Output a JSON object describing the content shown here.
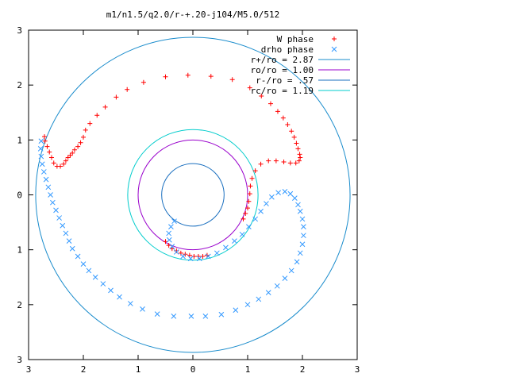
{
  "chart_data": {
    "type": "scatter",
    "title": "m1/n1.5/q2.0/r-+.20-j104/M5.0/512",
    "xlabel": "",
    "ylabel": "",
    "xlim": [
      -3,
      3
    ],
    "ylim": [
      -3,
      3
    ],
    "x_tick_labels": [
      "3",
      "2",
      "1",
      "0",
      "1",
      "2",
      "3"
    ],
    "y_tick_labels": [
      "3",
      "2",
      "1",
      "0",
      "1",
      "2",
      "3"
    ],
    "grid": false,
    "legend_position": "top-right",
    "series": [
      {
        "name": "W phase",
        "kind": "points",
        "marker": "plus",
        "color": "#ff0000",
        "points": [
          [
            -0.09,
            2.18
          ],
          [
            -0.5,
            2.15
          ],
          [
            -0.9,
            2.05
          ],
          [
            -1.2,
            1.92
          ],
          [
            -1.4,
            1.78
          ],
          [
            -1.6,
            1.6
          ],
          [
            -1.75,
            1.45
          ],
          [
            -1.88,
            1.3
          ],
          [
            -1.96,
            1.18
          ],
          [
            -2.0,
            1.05
          ],
          [
            -2.05,
            0.95
          ],
          [
            -2.1,
            0.88
          ],
          [
            -2.16,
            0.82
          ],
          [
            -2.2,
            0.76
          ],
          [
            -2.24,
            0.72
          ],
          [
            -2.28,
            0.68
          ],
          [
            -2.32,
            0.62
          ],
          [
            -2.36,
            0.56
          ],
          [
            -2.42,
            0.52
          ],
          [
            -2.48,
            0.52
          ],
          [
            -2.54,
            0.58
          ],
          [
            -2.58,
            0.68
          ],
          [
            -2.62,
            0.78
          ],
          [
            -2.66,
            0.88
          ],
          [
            -2.7,
            0.98
          ],
          [
            -2.71,
            1.06
          ],
          [
            0.33,
            2.16
          ],
          [
            0.72,
            2.1
          ],
          [
            1.04,
            1.95
          ],
          [
            1.25,
            1.8
          ],
          [
            1.42,
            1.66
          ],
          [
            1.55,
            1.52
          ],
          [
            1.65,
            1.4
          ],
          [
            1.73,
            1.28
          ],
          [
            1.8,
            1.16
          ],
          [
            1.85,
            1.05
          ],
          [
            1.89,
            0.94
          ],
          [
            1.92,
            0.84
          ],
          [
            1.95,
            0.74
          ],
          [
            1.96,
            0.68
          ],
          [
            1.94,
            0.62
          ],
          [
            1.88,
            0.58
          ],
          [
            1.78,
            0.58
          ],
          [
            1.66,
            0.6
          ],
          [
            1.52,
            0.62
          ],
          [
            1.38,
            0.62
          ],
          [
            1.24,
            0.56
          ],
          [
            1.14,
            0.44
          ],
          [
            1.08,
            0.3
          ],
          [
            1.05,
            0.16
          ],
          [
            1.04,
            0.02
          ],
          [
            1.02,
            -0.12
          ],
          [
            1.0,
            -0.24
          ],
          [
            0.96,
            -0.34
          ],
          [
            0.92,
            -0.44
          ],
          [
            -0.5,
            -0.85
          ],
          [
            -0.44,
            -0.92
          ],
          [
            -0.38,
            -0.98
          ],
          [
            -0.3,
            -1.02
          ],
          [
            -0.22,
            -1.06
          ],
          [
            -0.14,
            -1.08
          ],
          [
            -0.06,
            -1.1
          ],
          [
            0.02,
            -1.12
          ],
          [
            0.1,
            -1.12
          ],
          [
            0.18,
            -1.12
          ],
          [
            0.26,
            -1.1
          ]
        ]
      },
      {
        "name": "drho phase",
        "kind": "points",
        "marker": "cross",
        "color": "#3399ff",
        "points": [
          [
            -0.03,
            -2.21
          ],
          [
            -0.35,
            -2.21
          ],
          [
            -0.65,
            -2.17
          ],
          [
            -0.92,
            -2.08
          ],
          [
            -1.14,
            -1.98
          ],
          [
            -1.34,
            -1.86
          ],
          [
            -1.5,
            -1.74
          ],
          [
            -1.64,
            -1.62
          ],
          [
            -1.78,
            -1.5
          ],
          [
            -1.9,
            -1.38
          ],
          [
            -2.0,
            -1.26
          ],
          [
            -2.1,
            -1.12
          ],
          [
            -2.2,
            -0.98
          ],
          [
            -2.26,
            -0.84
          ],
          [
            -2.32,
            -0.7
          ],
          [
            -2.38,
            -0.56
          ],
          [
            -2.44,
            -0.42
          ],
          [
            -2.5,
            -0.28
          ],
          [
            -2.56,
            -0.14
          ],
          [
            -2.6,
            0.0
          ],
          [
            -2.64,
            0.14
          ],
          [
            -2.68,
            0.28
          ],
          [
            -2.72,
            0.42
          ],
          [
            -2.75,
            0.56
          ],
          [
            -2.77,
            0.7
          ],
          [
            -2.78,
            0.84
          ],
          [
            -2.77,
            0.98
          ],
          [
            0.23,
            -2.21
          ],
          [
            0.52,
            -2.18
          ],
          [
            0.78,
            -2.1
          ],
          [
            1.0,
            -2.0
          ],
          [
            1.2,
            -1.9
          ],
          [
            1.38,
            -1.78
          ],
          [
            1.54,
            -1.66
          ],
          [
            1.68,
            -1.52
          ],
          [
            1.8,
            -1.38
          ],
          [
            1.9,
            -1.22
          ],
          [
            1.96,
            -1.06
          ],
          [
            2.0,
            -0.9
          ],
          [
            2.02,
            -0.74
          ],
          [
            2.02,
            -0.58
          ],
          [
            2.0,
            -0.44
          ],
          [
            1.96,
            -0.3
          ],
          [
            1.92,
            -0.18
          ],
          [
            1.86,
            -0.06
          ],
          [
            1.78,
            0.02
          ],
          [
            1.68,
            0.06
          ],
          [
            1.56,
            0.04
          ],
          [
            1.44,
            -0.04
          ],
          [
            1.34,
            -0.16
          ],
          [
            1.24,
            -0.3
          ],
          [
            1.14,
            -0.44
          ],
          [
            1.02,
            -0.58
          ],
          [
            0.9,
            -0.72
          ],
          [
            0.76,
            -0.84
          ],
          [
            0.6,
            -0.96
          ],
          [
            0.44,
            -1.06
          ],
          [
            0.28,
            -1.12
          ],
          [
            0.12,
            -1.16
          ],
          [
            -0.04,
            -1.16
          ],
          [
            -0.18,
            -1.12
          ],
          [
            -0.3,
            -1.04
          ],
          [
            -0.38,
            -0.94
          ],
          [
            -0.43,
            -0.82
          ],
          [
            -0.44,
            -0.7
          ],
          [
            -0.4,
            -0.58
          ],
          [
            -0.34,
            -0.48
          ]
        ]
      },
      {
        "name": "r+/ro = 2.87",
        "kind": "circle",
        "radius": 2.87,
        "color": "#1a8ccc",
        "label": "r+/ro = 2.87"
      },
      {
        "name": "ro/ro = 1.00",
        "kind": "circle",
        "radius": 1.0,
        "color": "#9900cc",
        "label": "ro/ro = 1.00"
      },
      {
        "name": "r-/ro = .57",
        "kind": "circle",
        "radius": 0.57,
        "color": "#1a6fbf",
        "label": "r-/ro = .57"
      },
      {
        "name": "rc/ro = 1.19",
        "kind": "circle",
        "radius": 1.19,
        "color": "#00cccc",
        "label": "rc/ro = 1.19"
      }
    ]
  },
  "legend": [
    {
      "label": "W phase",
      "symbol": "plus",
      "color": "#ff0000"
    },
    {
      "label": "drho phase",
      "symbol": "cross",
      "color": "#3399ff"
    },
    {
      "label": "r+/ro = 2.87",
      "symbol": "line",
      "color": "#1a8ccc"
    },
    {
      "label": "ro/ro = 1.00",
      "symbol": "line",
      "color": "#9900cc"
    },
    {
      "label": "r-/ro = .57",
      "symbol": "line",
      "color": "#1a6fbf"
    },
    {
      "label": "rc/ro = 1.19",
      "symbol": "line",
      "color": "#00cccc"
    }
  ]
}
